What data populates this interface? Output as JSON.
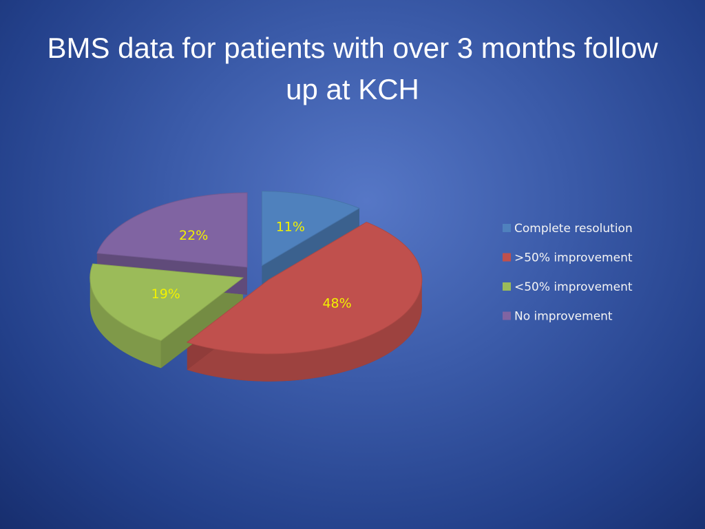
{
  "chart_data": {
    "type": "pie",
    "title": "BMS data for patients with over 3 months follow up at KCH",
    "categories": [
      "Complete resolution",
      ">50% improvement",
      "<50% improvement",
      "No improvement"
    ],
    "values": [
      11,
      48,
      19,
      22
    ],
    "value_labels": [
      "11%",
      "48%",
      "19%",
      "22%"
    ],
    "colors": [
      "#4f81bd",
      "#c0504d",
      "#9bbb59",
      "#8064a2"
    ],
    "legend": "right"
  }
}
